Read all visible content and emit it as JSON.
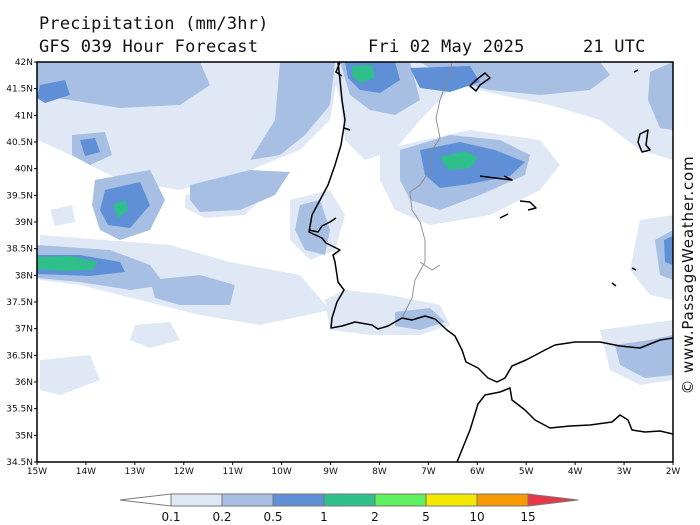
{
  "header": {
    "title": "Precipitation (mm/3hr)",
    "model": "GFS 039 Hour Forecast",
    "date": "Fri 02 May 2025",
    "time": "21 UTC"
  },
  "credit": "© www.PassageWeather.com",
  "map": {
    "lat_labels": [
      "42N",
      "41.5N",
      "41N",
      "40.5N",
      "40N",
      "39.5N",
      "39N",
      "38.5N",
      "38N",
      "37.5N",
      "37N",
      "36.5N",
      "36N",
      "35.5N",
      "35N",
      "34.5N"
    ],
    "lon_labels": [
      "15W",
      "14W",
      "13W",
      "12W",
      "11W",
      "10W",
      "9W",
      "8W",
      "7W",
      "6W",
      "5W",
      "4W",
      "3W",
      "2W"
    ],
    "lat_range": [
      34.5,
      42
    ],
    "lon_range": [
      -15,
      -2
    ]
  },
  "legend": {
    "labels": [
      "0.1",
      "0.2",
      "0.5",
      "1",
      "2",
      "5",
      "10",
      "15"
    ],
    "colors": [
      "#ffffff",
      "#e0e8f6",
      "#a6bfe3",
      "#5f8fd6",
      "#2fbf8a",
      "#5ef05e",
      "#f5e800",
      "#f59a00",
      "#e8364a"
    ]
  }
}
